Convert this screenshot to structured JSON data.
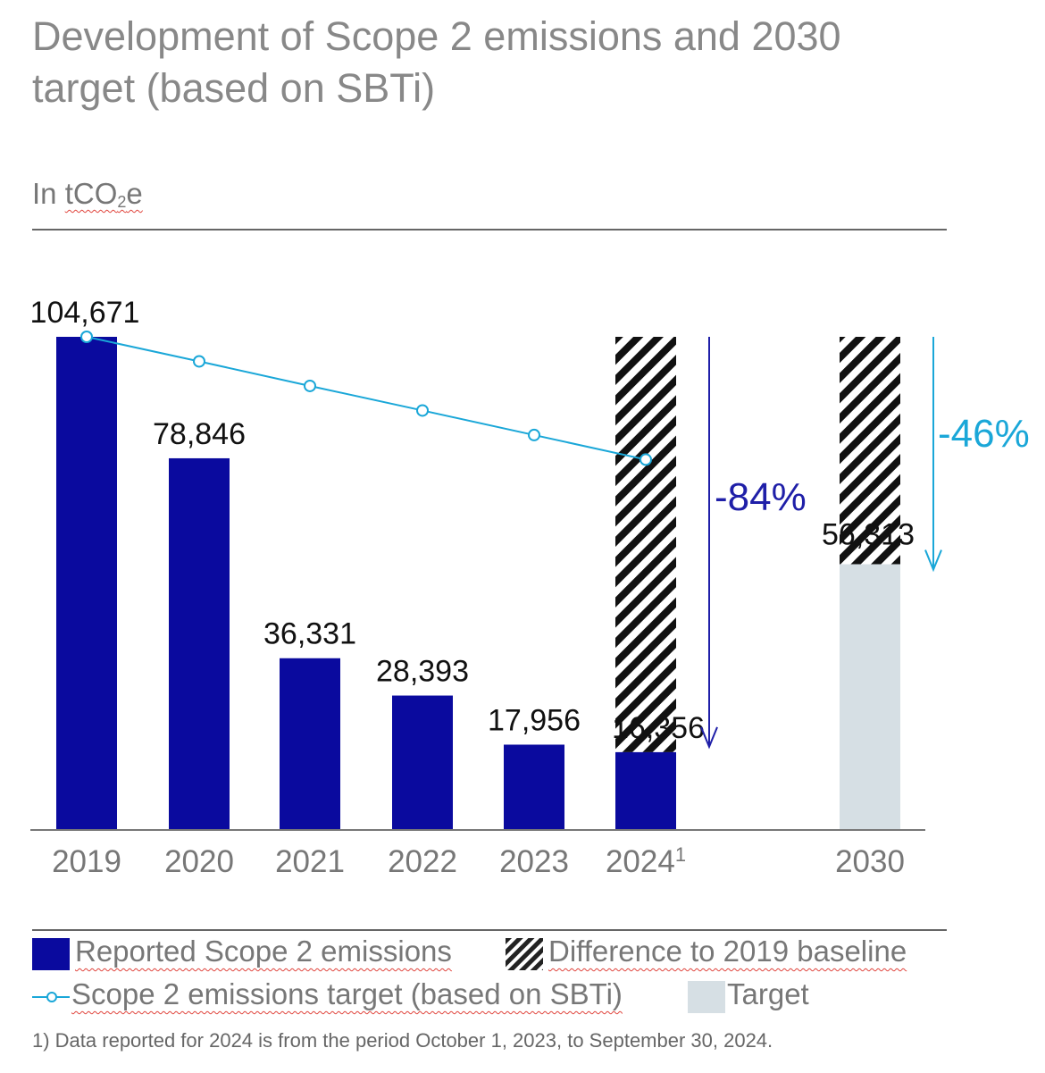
{
  "chart_data": {
    "type": "bar",
    "title": "Development of Scope 2 emissions and 2030 target (based on SBTi)",
    "unit_prefix": "In ",
    "unit_main": "tCO",
    "unit_sub": "2",
    "unit_suffix": "e",
    "ylim": [
      0,
      104671
    ],
    "categories": [
      "2019",
      "2020",
      "2021",
      "2022",
      "2023",
      "2024",
      "2030"
    ],
    "category_superscripts": [
      "",
      "",
      "",
      "",
      "",
      "1",
      ""
    ],
    "series": [
      {
        "name": "Reported Scope 2 emissions",
        "color": "#0a0a9e",
        "values": [
          104671,
          78846,
          36331,
          28393,
          17956,
          16356,
          null
        ],
        "labels": [
          "104,671",
          "78,846",
          "36,331",
          "28,393",
          "17,956",
          "16,356",
          null
        ]
      },
      {
        "name": "Target",
        "color": "#d6dfe4",
        "values": [
          null,
          null,
          null,
          null,
          null,
          null,
          56313
        ],
        "labels": [
          null,
          null,
          null,
          null,
          null,
          null,
          "56,313"
        ]
      },
      {
        "name": "Difference to 2019 baseline",
        "pattern": "hatched",
        "applies_to": [
          "2024",
          "2030"
        ]
      },
      {
        "name": "Scope 2 emissions target (based on SBTi)",
        "type": "line",
        "color": "#1aa7d8",
        "values": [
          104671,
          99450,
          94230,
          89010,
          83790,
          78570,
          null
        ]
      }
    ],
    "annotations": [
      {
        "text": "-84%",
        "color": "#1f1fa8",
        "category": "2024"
      },
      {
        "text": "-46%",
        "color": "#1aa7d8",
        "category": "2030"
      }
    ]
  },
  "legend": {
    "reported": "Reported Scope 2 emissions",
    "difference": "Difference to 2019 baseline",
    "target_line": "Scope 2 emissions target (based on SBTi)",
    "target": "Target"
  },
  "footnote": "1) Data reported for 2024 is from the period October 1, 2023, to September 30, 2024.",
  "colors": {
    "reported": "#0a0a9e",
    "target_bar": "#d6dfe4",
    "target_line": "#1aa7d8",
    "arrow_84": "#1f1fa8",
    "arrow_46": "#1aa7d8",
    "axis_text": "#777777"
  }
}
